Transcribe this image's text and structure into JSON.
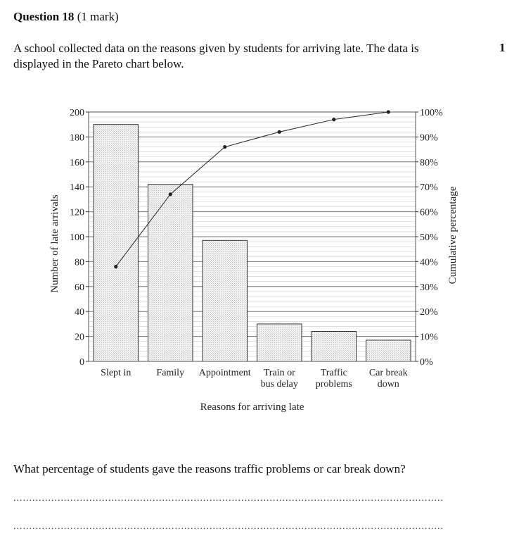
{
  "question": {
    "number": "Question 18",
    "marks_label": "(1 mark)",
    "intro": "A school collected data on the reasons given by students for arriving late. The data is displayed in the Pareto chart below.",
    "mark_value": "1",
    "prompt": "What percentage of students gave the reasons traffic problems or car break down?",
    "answer_line_1": "........................................................................................................................................",
    "answer_line_2": "........................................................................................................................................"
  },
  "chart_data": {
    "type": "bar",
    "categories": [
      [
        "Slept in"
      ],
      [
        "Family"
      ],
      [
        "Appointment"
      ],
      [
        "Train or",
        "bus delay"
      ],
      [
        "Traffic",
        "problems"
      ],
      [
        "Car break",
        "down"
      ]
    ],
    "values": [
      190,
      142,
      97,
      30,
      24,
      17
    ],
    "cumulative_percent": [
      38,
      67,
      86,
      92,
      97,
      100
    ],
    "xlabel": "Reasons for arriving late",
    "ylabel": "Number of late arrivals",
    "y2label": "Cumulative percentage",
    "ylim": [
      0,
      200
    ],
    "y2lim": [
      0,
      100
    ],
    "yticks": [
      "0",
      "20",
      "40",
      "60",
      "80",
      "100",
      "120",
      "140",
      "160",
      "180",
      "200"
    ],
    "y2ticks": [
      "0%",
      "10%",
      "20%",
      "30%",
      "40%",
      "50%",
      "60%",
      "70%",
      "80%",
      "90%",
      "100%"
    ],
    "grid": true
  }
}
